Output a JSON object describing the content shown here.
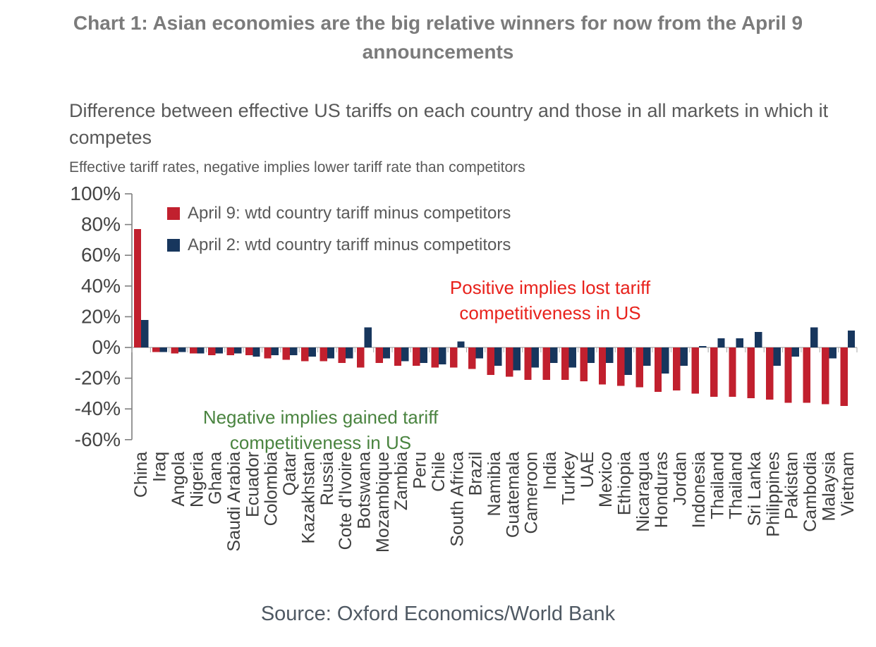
{
  "title": "Chart 1: Asian economies are the big relative winners for now from the April 9 announcements",
  "subtitle": "Difference between effective US tariffs on each country and those in all markets in which it competes",
  "axis_note": "Effective tariff rates, negative implies lower tariff rate than competitors",
  "source": "Source: Oxford Economics/World Bank",
  "annotations": {
    "positive": "Positive implies lost tariff competitiveness in US",
    "negative": "Negative implies gained tariff competitiveness in US"
  },
  "colors": {
    "april9": "#c1202e",
    "april2": "#17365d",
    "annotation_positive": "#e8221c",
    "annotation_negative": "#4a8440",
    "title_text": "#7b7b7b",
    "subtitle_text": "#595959",
    "axis_text": "#454545",
    "tick_label_text": "#3f3f3f",
    "axis_line": "#7f7f7f",
    "baseline": "#a8a8a8",
    "source_text": "#4f5963"
  },
  "chart_data": {
    "type": "bar",
    "categories": [
      "China",
      "Iraq",
      "Angola",
      "Nigeria",
      "Ghana",
      "Saudi Arabia",
      "Ecuador",
      "Colombia",
      "Qatar",
      "Kazakhstan",
      "Russia",
      "Cote d'Ivoire",
      "Botswana",
      "Mozambique",
      "Zambia",
      "Peru",
      "Chile",
      "South Africa",
      "Brazil",
      "Namibia",
      "Guatemala",
      "Cameroon",
      "India",
      "Turkey",
      "UAE",
      "Mexico",
      "Ethiopia",
      "Nicaragua",
      "Honduras",
      "Jordan",
      "Indonesia",
      "Thailand",
      "Thailand",
      "Sri Lanka",
      "Philippines",
      "Pakistan",
      "Cambodia",
      "Malaysia",
      "Vietnam"
    ],
    "series": [
      {
        "name": "April 9: wtd country tariff minus competitors",
        "color_key": "april9",
        "values": [
          77,
          -3,
          -4,
          -4,
          -5,
          -5,
          -5,
          -7,
          -8,
          -9,
          -9,
          -10,
          -13,
          -10,
          -12,
          -12,
          -13,
          -13,
          -14,
          -18,
          -19,
          -21,
          -21,
          -21,
          -22,
          -24,
          -25,
          -26,
          -29,
          -28,
          -30,
          -32,
          -32,
          -33,
          -34,
          -36,
          -36,
          -37,
          -38
        ]
      },
      {
        "name": "April 2: wtd country tariff minus competitors",
        "color_key": "april2",
        "values": [
          18,
          -3,
          -3,
          -4,
          -4,
          -4,
          -6,
          -5,
          -5,
          -6,
          -7,
          -7,
          13,
          -7,
          -9,
          -10,
          -11,
          4,
          -7,
          -12,
          -15,
          -13,
          -10,
          -13,
          -10,
          -10,
          -18,
          -12,
          -17,
          -12,
          1,
          6,
          6,
          10,
          -12,
          -6,
          13,
          -7,
          11
        ]
      }
    ],
    "unit": "%",
    "ylim": [
      -60,
      100
    ],
    "yticks": [
      {
        "value": 100,
        "label": "100%"
      },
      {
        "value": 80,
        "label": "80%"
      },
      {
        "value": 60,
        "label": "60%"
      },
      {
        "value": 40,
        "label": "40%"
      },
      {
        "value": 20,
        "label": "20%"
      },
      {
        "value": 0,
        "label": "0%"
      },
      {
        "value": -20,
        "label": "-20%"
      },
      {
        "value": -40,
        "label": "-40%"
      },
      {
        "value": -60,
        "label": "-60%"
      }
    ],
    "grid": false,
    "legend_position": "top-left-inside"
  }
}
